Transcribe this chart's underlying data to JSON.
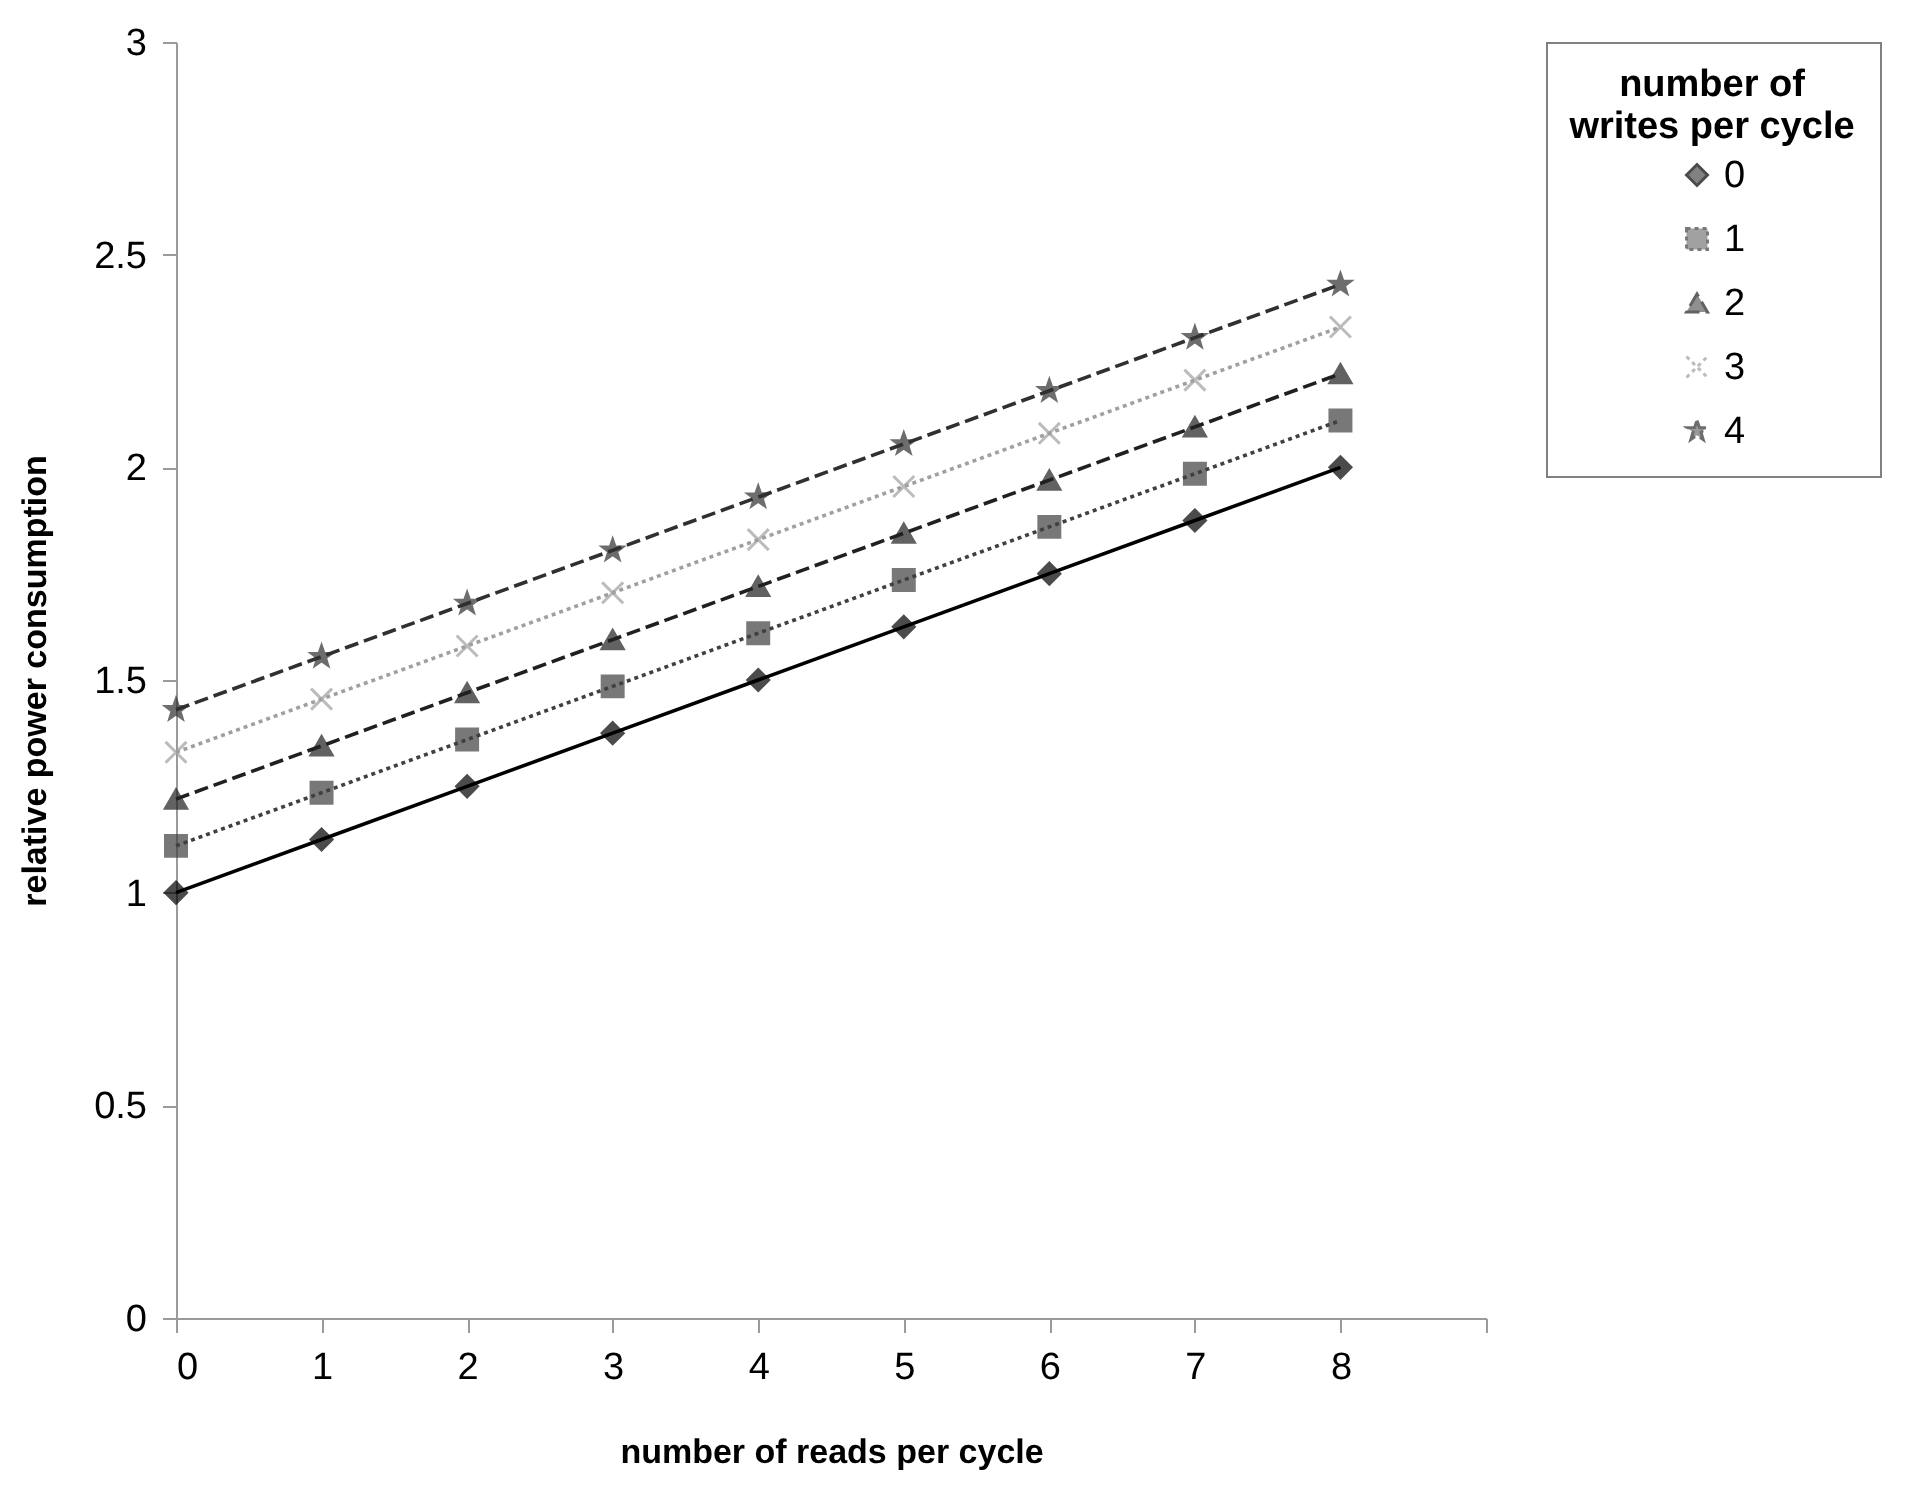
{
  "chart_data": {
    "type": "line",
    "xlabel": "number of reads per cycle",
    "ylabel": "relative power consumption",
    "legend_title": "number of writes per cycle",
    "x": [
      0,
      1,
      2,
      3,
      4,
      5,
      6,
      7,
      8
    ],
    "series": [
      {
        "name": "0",
        "color": "#000000",
        "marker": "diamond",
        "line_style": "solid",
        "values": [
          1,
          1.125,
          1.25,
          1.375,
          1.5,
          1.625,
          1.75,
          1.875,
          2
        ]
      },
      {
        "name": "1",
        "color": "#404040",
        "marker": "square",
        "line_style": "dotted",
        "values": [
          1.11,
          1.235,
          1.36,
          1.485,
          1.61,
          1.735,
          1.86,
          1.985,
          2.11
        ]
      },
      {
        "name": "2",
        "color": "#202020",
        "marker": "triangle",
        "line_style": "dashed",
        "values": [
          1.22,
          1.345,
          1.47,
          1.595,
          1.72,
          1.845,
          1.97,
          2.095,
          2.22
        ]
      },
      {
        "name": "3",
        "color": "#a0a0a0",
        "marker": "cross",
        "line_style": "dotted",
        "values": [
          1.33,
          1.455,
          1.58,
          1.705,
          1.83,
          1.955,
          2.08,
          2.205,
          2.33
        ]
      },
      {
        "name": "4",
        "color": "#303030",
        "marker": "star",
        "line_style": "dashed",
        "values": [
          1.43,
          1.555,
          1.68,
          1.805,
          1.93,
          2.055,
          2.18,
          2.305,
          2.43
        ]
      }
    ],
    "xlim": [
      0,
      9
    ],
    "xticks": [
      0,
      1,
      2,
      3,
      4,
      5,
      6,
      7,
      8,
      {
        "value": 9,
        "label": null
      }
    ],
    "ylim": [
      0,
      3
    ],
    "yticks": [
      0,
      0.5,
      1,
      1.5,
      2,
      2.5,
      3
    ],
    "grid": false,
    "legend": "right"
  }
}
